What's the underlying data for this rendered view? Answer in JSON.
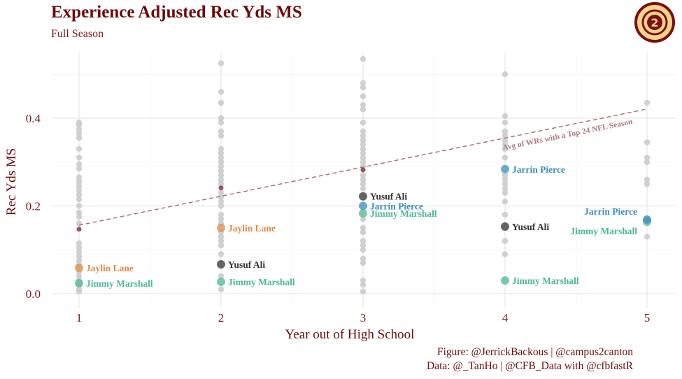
{
  "title": "Experience Adjusted Rec Yds MS",
  "subtitle": "Full Season",
  "caption_line1": "Figure: @JerrickBackous | @campus2canton",
  "caption_line2": "Data: @_TanHo | @CFB_Data with @cfbfastR",
  "logo_text": "CAMPUS 2 CANTON",
  "chart_data": {
    "type": "scatter",
    "xlabel": "Year out of High School",
    "ylabel": "Rec Yds MS",
    "xlim": [
      0.8,
      5.2
    ],
    "ylim": [
      -0.03,
      0.55
    ],
    "xticks": [
      "1",
      "2",
      "3",
      "4",
      "5"
    ],
    "yticks": [
      "0.0",
      "0.2",
      "0.4"
    ],
    "grid": true,
    "colors": {
      "background_points": "#cccccc",
      "average": "#8b3a44",
      "Jaylin Lane": "#e08c45",
      "Jimmy Marshall": "#4db897",
      "Yusuf Ali": "#333333",
      "Jarrin Pierce": "#3a8fc0",
      "title": "#6e0a0a"
    },
    "background_points": {
      "1": [
        0.39,
        0.385,
        0.375,
        0.365,
        0.355,
        0.33,
        0.31,
        0.295,
        0.285,
        0.265,
        0.255,
        0.245,
        0.235,
        0.225,
        0.215,
        0.2,
        0.185,
        0.175,
        0.16,
        0.115,
        0.105,
        0.095,
        0.085,
        0.075,
        0.065,
        0.05,
        0.04,
        0.03,
        0.02,
        0.01,
        0.005
      ],
      "2": [
        0.525,
        0.46,
        0.435,
        0.4,
        0.39,
        0.37,
        0.36,
        0.33,
        0.32,
        0.31,
        0.3,
        0.29,
        0.28,
        0.27,
        0.26,
        0.25,
        0.23,
        0.22,
        0.21,
        0.2,
        0.18,
        0.17,
        0.16,
        0.14,
        0.13,
        0.12,
        0.11,
        0.09,
        0.04,
        0.01
      ],
      "3": [
        0.535,
        0.48,
        0.47,
        0.45,
        0.43,
        0.42,
        0.39,
        0.37,
        0.36,
        0.35,
        0.34,
        0.33,
        0.32,
        0.31,
        0.3,
        0.29,
        0.27,
        0.26,
        0.25,
        0.24,
        0.17,
        0.15,
        0.14,
        0.12,
        0.11,
        0.1,
        0.08,
        0.07,
        0.03,
        0.02,
        0.005
      ],
      "4": [
        0.5,
        0.405,
        0.39,
        0.37,
        0.36,
        0.35,
        0.34,
        0.33,
        0.31,
        0.27,
        0.26,
        0.25,
        0.24,
        0.23,
        0.21,
        0.18,
        0.12,
        0.09
      ],
      "5": [
        0.435,
        0.345,
        0.31,
        0.3,
        0.26,
        0.25,
        0.17,
        0.13
      ]
    },
    "average_points": [
      {
        "x": 1,
        "y": 0.147
      },
      {
        "x": 2,
        "y": 0.241
      },
      {
        "x": 3,
        "y": 0.282
      }
    ],
    "trend_line": {
      "label": "Avg of WRs with a Top 24 NFL Season",
      "x": [
        1,
        5
      ],
      "y": [
        0.156,
        0.421
      ]
    },
    "series": [
      {
        "name": "Jaylin Lane",
        "x": [
          1,
          2
        ],
        "y": [
          0.059,
          0.15
        ]
      },
      {
        "name": "Jimmy Marshall",
        "x": [
          1,
          2,
          3,
          4,
          5
        ],
        "y": [
          0.024,
          0.027,
          0.183,
          0.03,
          0.164
        ]
      },
      {
        "name": "Yusuf Ali",
        "x": [
          2,
          3,
          4
        ],
        "y": [
          0.067,
          0.222,
          0.153
        ]
      },
      {
        "name": "Jarrin Pierce",
        "x": [
          3,
          4,
          5
        ],
        "y": [
          0.2,
          0.284,
          0.169
        ]
      }
    ]
  }
}
